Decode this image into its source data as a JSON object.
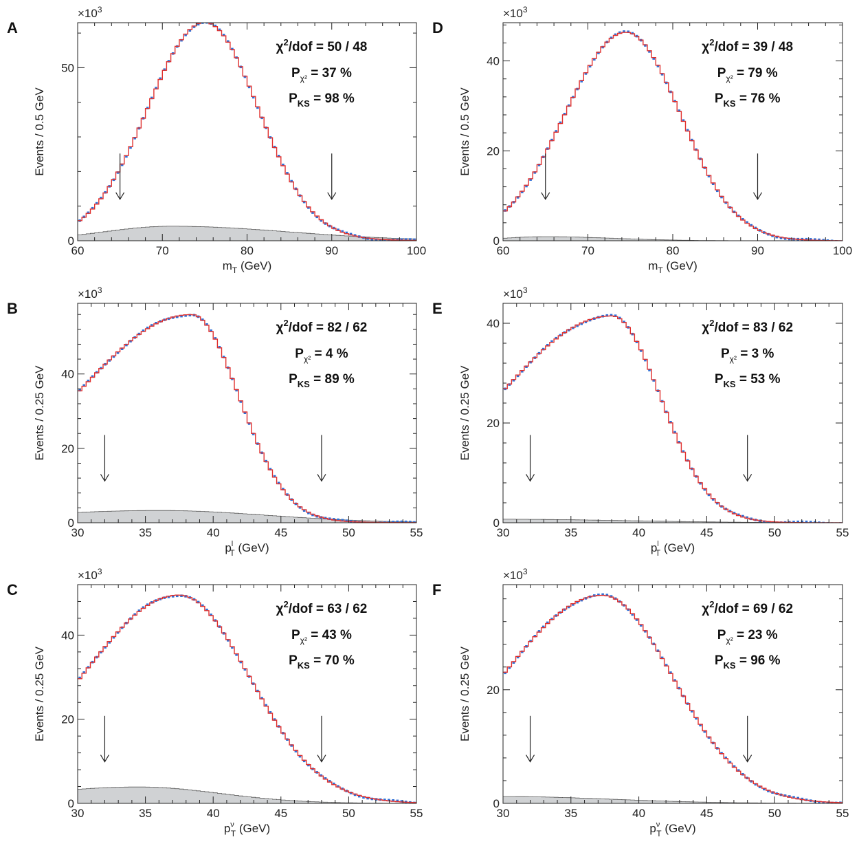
{
  "chart_data": [
    {
      "panel": "A",
      "type": "line",
      "multiplier_base": "×10",
      "multiplier_exp": "3",
      "xlabel_main": "m",
      "xlabel_sub": "T",
      "xlabel_sup": "",
      "xlabel_unit": " (GeV)",
      "ylabel": "Events / 0.5 GeV",
      "xlim": [
        60,
        100
      ],
      "ylim": [
        0,
        63
      ],
      "x_ticks": [
        60,
        70,
        80,
        90,
        100
      ],
      "y_ticks": [
        0,
        50
      ],
      "arrows_x": [
        65,
        90
      ],
      "signal_shape": {
        "peak_x": 75,
        "peak_y": 62.5,
        "sigma_left": 6.7,
        "sigma_right": 6.3
      },
      "background_shape": {
        "peak_x": 71,
        "peak_y": 4.2,
        "sigma_left": 8,
        "sigma_right": 14
      },
      "series": [
        {
          "name": "data",
          "color": "#2f6fd6"
        },
        {
          "name": "fit",
          "color": "#e0302e"
        },
        {
          "name": "background",
          "color": "#d0d2d4"
        }
      ],
      "stats": {
        "chi2_prefix": "χ",
        "chi2_sup": "2",
        "chi2_suffix": "/dof = 50 / 48",
        "pchi_prefix": "P",
        "pchi_sub": "χ²",
        "pchi_suffix": " = 37 %",
        "pks_prefix": "P",
        "pks_sub": "KS",
        "pks_suffix": " = 98 %"
      }
    },
    {
      "panel": "B",
      "type": "line",
      "multiplier_base": "×10",
      "multiplier_exp": "3",
      "xlabel_main": "p",
      "xlabel_sub": "T",
      "xlabel_sup": "l",
      "xlabel_unit": " (GeV)",
      "ylabel": "Events / 0.25 GeV",
      "xlim": [
        30,
        55
      ],
      "ylim": [
        0,
        59
      ],
      "x_ticks": [
        30,
        35,
        40,
        45,
        50,
        55
      ],
      "y_ticks": [
        0,
        20,
        40
      ],
      "arrows_x": [
        32,
        48
      ],
      "signal_shape": {
        "peak_x": 38.4,
        "peak_y": 55.5,
        "sigma_left": 8.6,
        "sigma_right": 3.5
      },
      "background_shape": {
        "peak_x": 36,
        "peak_y": 3.3,
        "sigma_left": 10,
        "sigma_right": 8
      },
      "series": [
        {
          "name": "data",
          "color": "#2f6fd6"
        },
        {
          "name": "fit",
          "color": "#e0302e"
        },
        {
          "name": "background",
          "color": "#d0d2d4"
        }
      ],
      "stats": {
        "chi2_prefix": "χ",
        "chi2_sup": "2",
        "chi2_suffix": "/dof = 82 / 62",
        "pchi_prefix": "P",
        "pchi_sub": "χ²",
        "pchi_suffix": " = 4 %",
        "pks_prefix": "P",
        "pks_sub": "KS",
        "pks_suffix": " = 89 %"
      }
    },
    {
      "panel": "C",
      "type": "line",
      "multiplier_base": "×10",
      "multiplier_exp": "3",
      "xlabel_main": "p",
      "xlabel_sub": "T",
      "xlabel_sup": "ν",
      "xlabel_unit": " (GeV)",
      "ylabel": "Events / 0.25 GeV",
      "xlim": [
        30,
        55
      ],
      "ylim": [
        0,
        52
      ],
      "x_ticks": [
        30,
        35,
        40,
        45,
        50,
        55
      ],
      "y_ticks": [
        0,
        20,
        40
      ],
      "arrows_x": [
        32,
        48
      ],
      "signal_shape": {
        "peak_x": 37.5,
        "peak_y": 49,
        "sigma_left": 7.2,
        "sigma_right": 5.2
      },
      "background_shape": {
        "peak_x": 34.5,
        "peak_y": 3.9,
        "sigma_left": 8,
        "sigma_right": 6
      },
      "series": [
        {
          "name": "data",
          "color": "#2f6fd6"
        },
        {
          "name": "fit",
          "color": "#e0302e"
        },
        {
          "name": "background",
          "color": "#d0d2d4"
        }
      ],
      "stats": {
        "chi2_prefix": "χ",
        "chi2_sup": "2",
        "chi2_suffix": "/dof = 63 / 62",
        "pchi_prefix": "P",
        "pchi_sub": "χ²",
        "pchi_suffix": " = 43 %",
        "pks_prefix": "P",
        "pks_sub": "KS",
        "pks_suffix": " = 70 %"
      }
    },
    {
      "panel": "D",
      "type": "line",
      "multiplier_base": "×10",
      "multiplier_exp": "3",
      "xlabel_main": "m",
      "xlabel_sub": "T",
      "xlabel_sup": "",
      "xlabel_unit": " (GeV)",
      "ylabel": "Events / 0.5 GeV",
      "xlim": [
        60,
        100
      ],
      "ylim": [
        0,
        48.5
      ],
      "x_ticks": [
        60,
        70,
        80,
        90,
        100
      ],
      "y_ticks": [
        0,
        20,
        40
      ],
      "arrows_x": [
        65,
        90
      ],
      "signal_shape": {
        "peak_x": 74.5,
        "peak_y": 46.3,
        "sigma_left": 7.2,
        "sigma_right": 6.4
      },
      "background_shape": {
        "peak_x": 65,
        "peak_y": 0.9,
        "sigma_left": 5,
        "sigma_right": 8
      },
      "series": [
        {
          "name": "data",
          "color": "#2f6fd6"
        },
        {
          "name": "fit",
          "color": "#e0302e"
        },
        {
          "name": "background",
          "color": "#d0d2d4"
        }
      ],
      "stats": {
        "chi2_prefix": "χ",
        "chi2_sup": "2",
        "chi2_suffix": "/dof = 39 / 48",
        "pchi_prefix": "P",
        "pchi_sub": "χ²",
        "pchi_suffix": " = 79 %",
        "pks_prefix": "P",
        "pks_sub": "KS",
        "pks_suffix": " = 76 %"
      }
    },
    {
      "panel": "E",
      "type": "line",
      "multiplier_base": "×10",
      "multiplier_exp": "3",
      "xlabel_main": "p",
      "xlabel_sub": "T",
      "xlabel_sup": "l",
      "xlabel_unit": " (GeV)",
      "ylabel": "Events / 0.25 GeV",
      "xlim": [
        30,
        55
      ],
      "ylim": [
        0,
        44
      ],
      "x_ticks": [
        30,
        35,
        40,
        45,
        50,
        55
      ],
      "y_ticks": [
        0,
        20,
        40
      ],
      "arrows_x": [
        32,
        48
      ],
      "signal_shape": {
        "peak_x": 38,
        "peak_y": 41.4,
        "sigma_left": 8.4,
        "sigma_right": 3.6
      },
      "background_shape": {
        "peak_x": 30,
        "peak_y": 0.7,
        "sigma_left": 5,
        "sigma_right": 9
      },
      "series": [
        {
          "name": "data",
          "color": "#2f6fd6"
        },
        {
          "name": "fit",
          "color": "#e0302e"
        },
        {
          "name": "background",
          "color": "#d0d2d4"
        }
      ],
      "stats": {
        "chi2_prefix": "χ",
        "chi2_sup": "2",
        "chi2_suffix": "/dof = 83 / 62",
        "pchi_prefix": "P",
        "pchi_sub": "χ²",
        "pchi_suffix": " = 3 %",
        "pks_prefix": "P",
        "pks_sub": "KS",
        "pks_suffix": " = 53 %"
      }
    },
    {
      "panel": "F",
      "type": "line",
      "multiplier_base": "×10",
      "multiplier_exp": "3",
      "xlabel_main": "p",
      "xlabel_sub": "T",
      "xlabel_sup": "ν",
      "xlabel_unit": " (GeV)",
      "ylabel": "Events / 0.25 GeV",
      "xlim": [
        30,
        55
      ],
      "ylim": [
        0,
        38.5
      ],
      "x_ticks": [
        30,
        35,
        40,
        45,
        50,
        55
      ],
      "y_ticks": [
        0,
        20
      ],
      "arrows_x": [
        32,
        48
      ],
      "signal_shape": {
        "peak_x": 37.3,
        "peak_y": 36.5,
        "sigma_left": 7.4,
        "sigma_right": 5.2
      },
      "background_shape": {
        "peak_x": 30,
        "peak_y": 1.2,
        "sigma_left": 5,
        "sigma_right": 8
      },
      "series": [
        {
          "name": "data",
          "color": "#2f6fd6"
        },
        {
          "name": "fit",
          "color": "#e0302e"
        },
        {
          "name": "background",
          "color": "#d0d2d4"
        }
      ],
      "stats": {
        "chi2_prefix": "χ",
        "chi2_sup": "2",
        "chi2_suffix": "/dof = 69 / 62",
        "pchi_prefix": "P",
        "pchi_sub": "χ²",
        "pchi_suffix": " = 23 %",
        "pks_prefix": "P",
        "pks_sub": "KS",
        "pks_suffix": " = 96 %"
      }
    }
  ]
}
